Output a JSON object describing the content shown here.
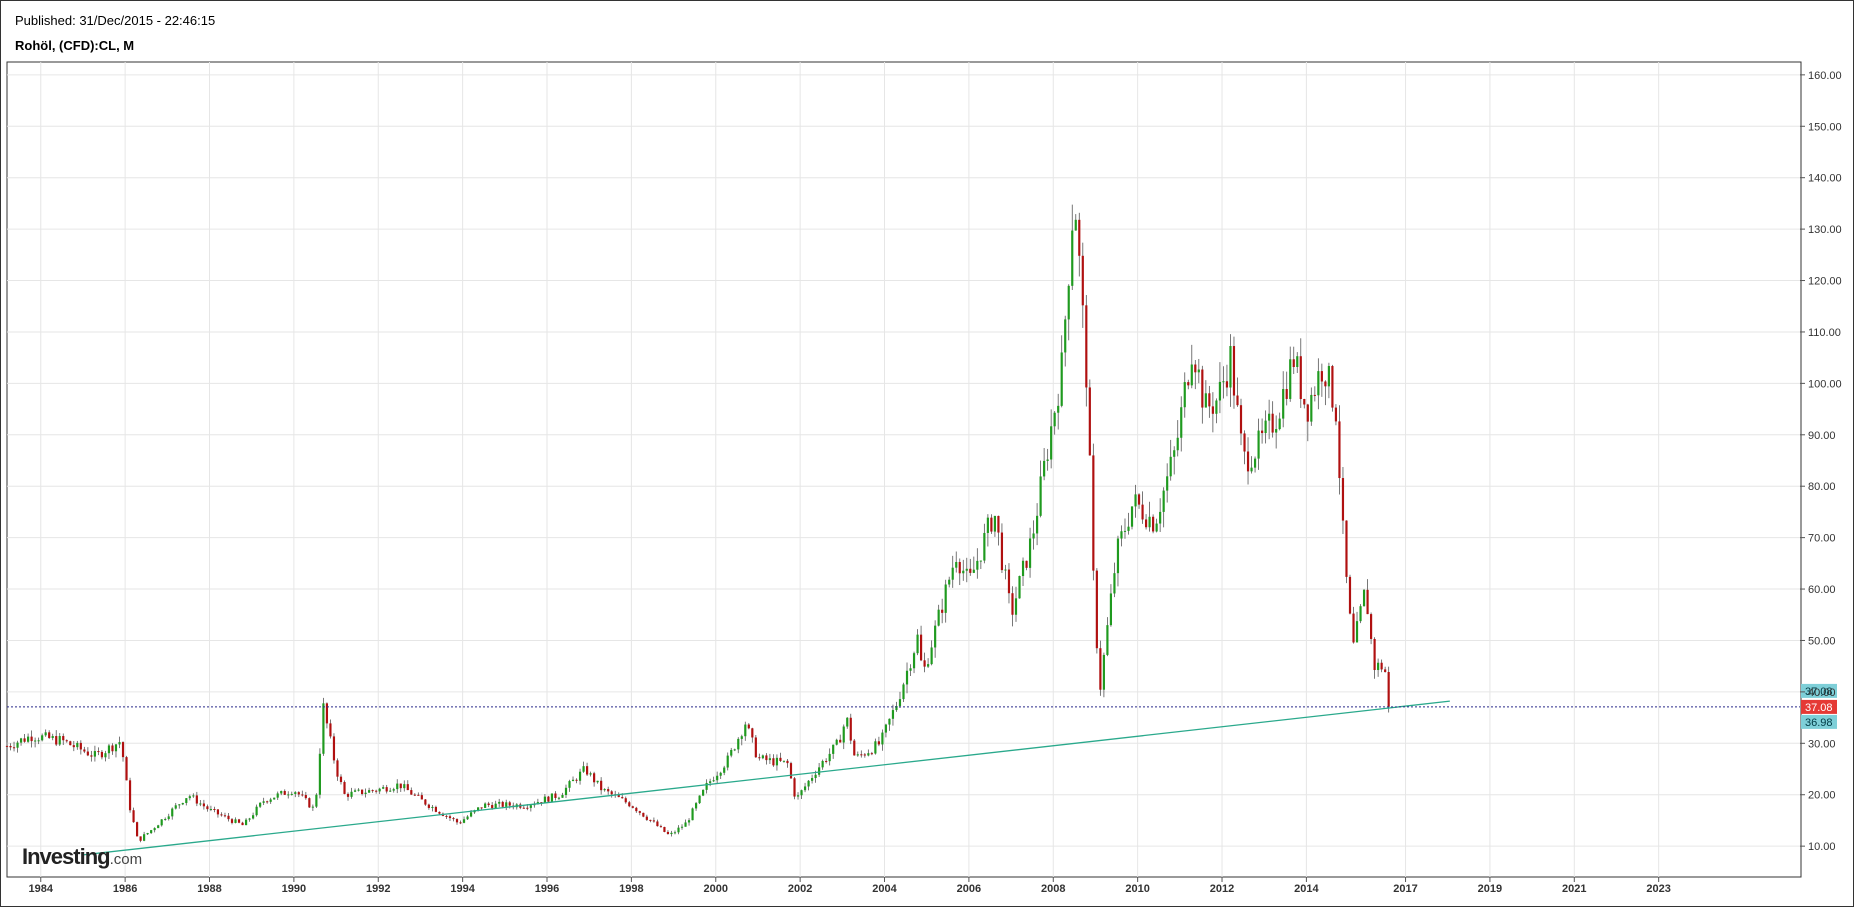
{
  "header": {
    "published": "Published: 31/Dec/2015  -  22:46:15",
    "symbol": "Rohöl, (CFD):CL, M"
  },
  "logo": {
    "brand": "Investing",
    "suffix": ".com"
  },
  "colors": {
    "up": "#1f9a1f",
    "down": "#b01010",
    "trendline": "#2aa98c",
    "priceline": "#2a2a8a",
    "badge_current": "#e53935",
    "badge_cyan": "#7ecfd8"
  },
  "chart_data": {
    "type": "candlestick",
    "title": "Rohöl, (CFD):CL, M",
    "xlabel": "",
    "ylabel": "",
    "xlim": [
      1983.2,
      2025.7
    ],
    "ylim": [
      4.0,
      162.5
    ],
    "x_ticks": [
      "1984",
      "1986",
      "1988",
      "1990",
      "1992",
      "1994",
      "1996",
      "1998",
      "2000",
      "2002",
      "2004",
      "2006",
      "2008",
      "2010",
      "2012",
      "2014",
      "2017",
      "2019",
      "2021",
      "2023"
    ],
    "y_ticks": [
      "10.00",
      "20.00",
      "30.00",
      "40.00",
      "50.00",
      "60.00",
      "70.00",
      "80.00",
      "90.00",
      "100.00",
      "110.00",
      "120.00",
      "130.00",
      "140.00",
      "150.00",
      "160.00"
    ],
    "grid": true,
    "price_labels": {
      "upper": "37.08",
      "current": "37.08",
      "lower": "36.98"
    },
    "current_price": 37.08,
    "trendline": {
      "from": [
        1985.0,
        8.3
      ],
      "to": [
        2017.4,
        38.2
      ]
    },
    "anchors": [
      [
        1983.2,
        29.5
      ],
      [
        1983.8,
        31.5
      ],
      [
        1984.5,
        30.5
      ],
      [
        1985.3,
        27.5
      ],
      [
        1985.9,
        30.5
      ],
      [
        1986.1,
        18
      ],
      [
        1986.3,
        11
      ],
      [
        1986.6,
        13
      ],
      [
        1987.5,
        20
      ],
      [
        1988.0,
        17
      ],
      [
        1988.8,
        14
      ],
      [
        1989.3,
        19
      ],
      [
        1990.0,
        21
      ],
      [
        1990.5,
        17
      ],
      [
        1990.7,
        37
      ],
      [
        1991.0,
        25
      ],
      [
        1991.2,
        20
      ],
      [
        1992.0,
        21
      ],
      [
        1992.5,
        22
      ],
      [
        1993.0,
        19
      ],
      [
        1993.9,
        14.5
      ],
      [
        1994.5,
        18
      ],
      [
        1995.5,
        18
      ],
      [
        1996.3,
        20
      ],
      [
        1996.9,
        25
      ],
      [
        1997.3,
        21
      ],
      [
        1998.0,
        18
      ],
      [
        1998.9,
        12
      ],
      [
        1999.3,
        14.5
      ],
      [
        1999.8,
        22
      ],
      [
        2000.3,
        27
      ],
      [
        2000.7,
        34
      ],
      [
        2001.0,
        27
      ],
      [
        2001.7,
        26
      ],
      [
        2001.9,
        19
      ],
      [
        2002.4,
        25
      ],
      [
        2002.9,
        30
      ],
      [
        2003.1,
        35
      ],
      [
        2003.3,
        27
      ],
      [
        2003.9,
        30
      ],
      [
        2004.3,
        38
      ],
      [
        2004.8,
        51
      ],
      [
        2004.9,
        43
      ],
      [
        2005.7,
        67
      ],
      [
        2006.0,
        61
      ],
      [
        2006.6,
        75
      ],
      [
        2007.0,
        55
      ],
      [
        2007.5,
        70
      ],
      [
        2007.9,
        89
      ],
      [
        2008.2,
        103
      ],
      [
        2008.5,
        138
      ],
      [
        2008.8,
        100
      ],
      [
        2008.95,
        62
      ],
      [
        2009.1,
        40
      ],
      [
        2009.5,
        67
      ],
      [
        2009.9,
        77
      ],
      [
        2010.4,
        73
      ],
      [
        2010.9,
        87
      ],
      [
        2011.3,
        108
      ],
      [
        2011.6,
        95
      ],
      [
        2011.9,
        97
      ],
      [
        2012.2,
        105
      ],
      [
        2012.5,
        85
      ],
      [
        2012.9,
        88
      ],
      [
        2013.3,
        94
      ],
      [
        2013.7,
        105
      ],
      [
        2014.0,
        95
      ],
      [
        2014.4,
        104
      ],
      [
        2014.7,
        95
      ],
      [
        2014.9,
        66
      ],
      [
        2015.1,
        48
      ],
      [
        2015.4,
        60
      ],
      [
        2015.6,
        45
      ],
      [
        2015.85,
        45
      ],
      [
        2015.97,
        37.1
      ]
    ]
  }
}
